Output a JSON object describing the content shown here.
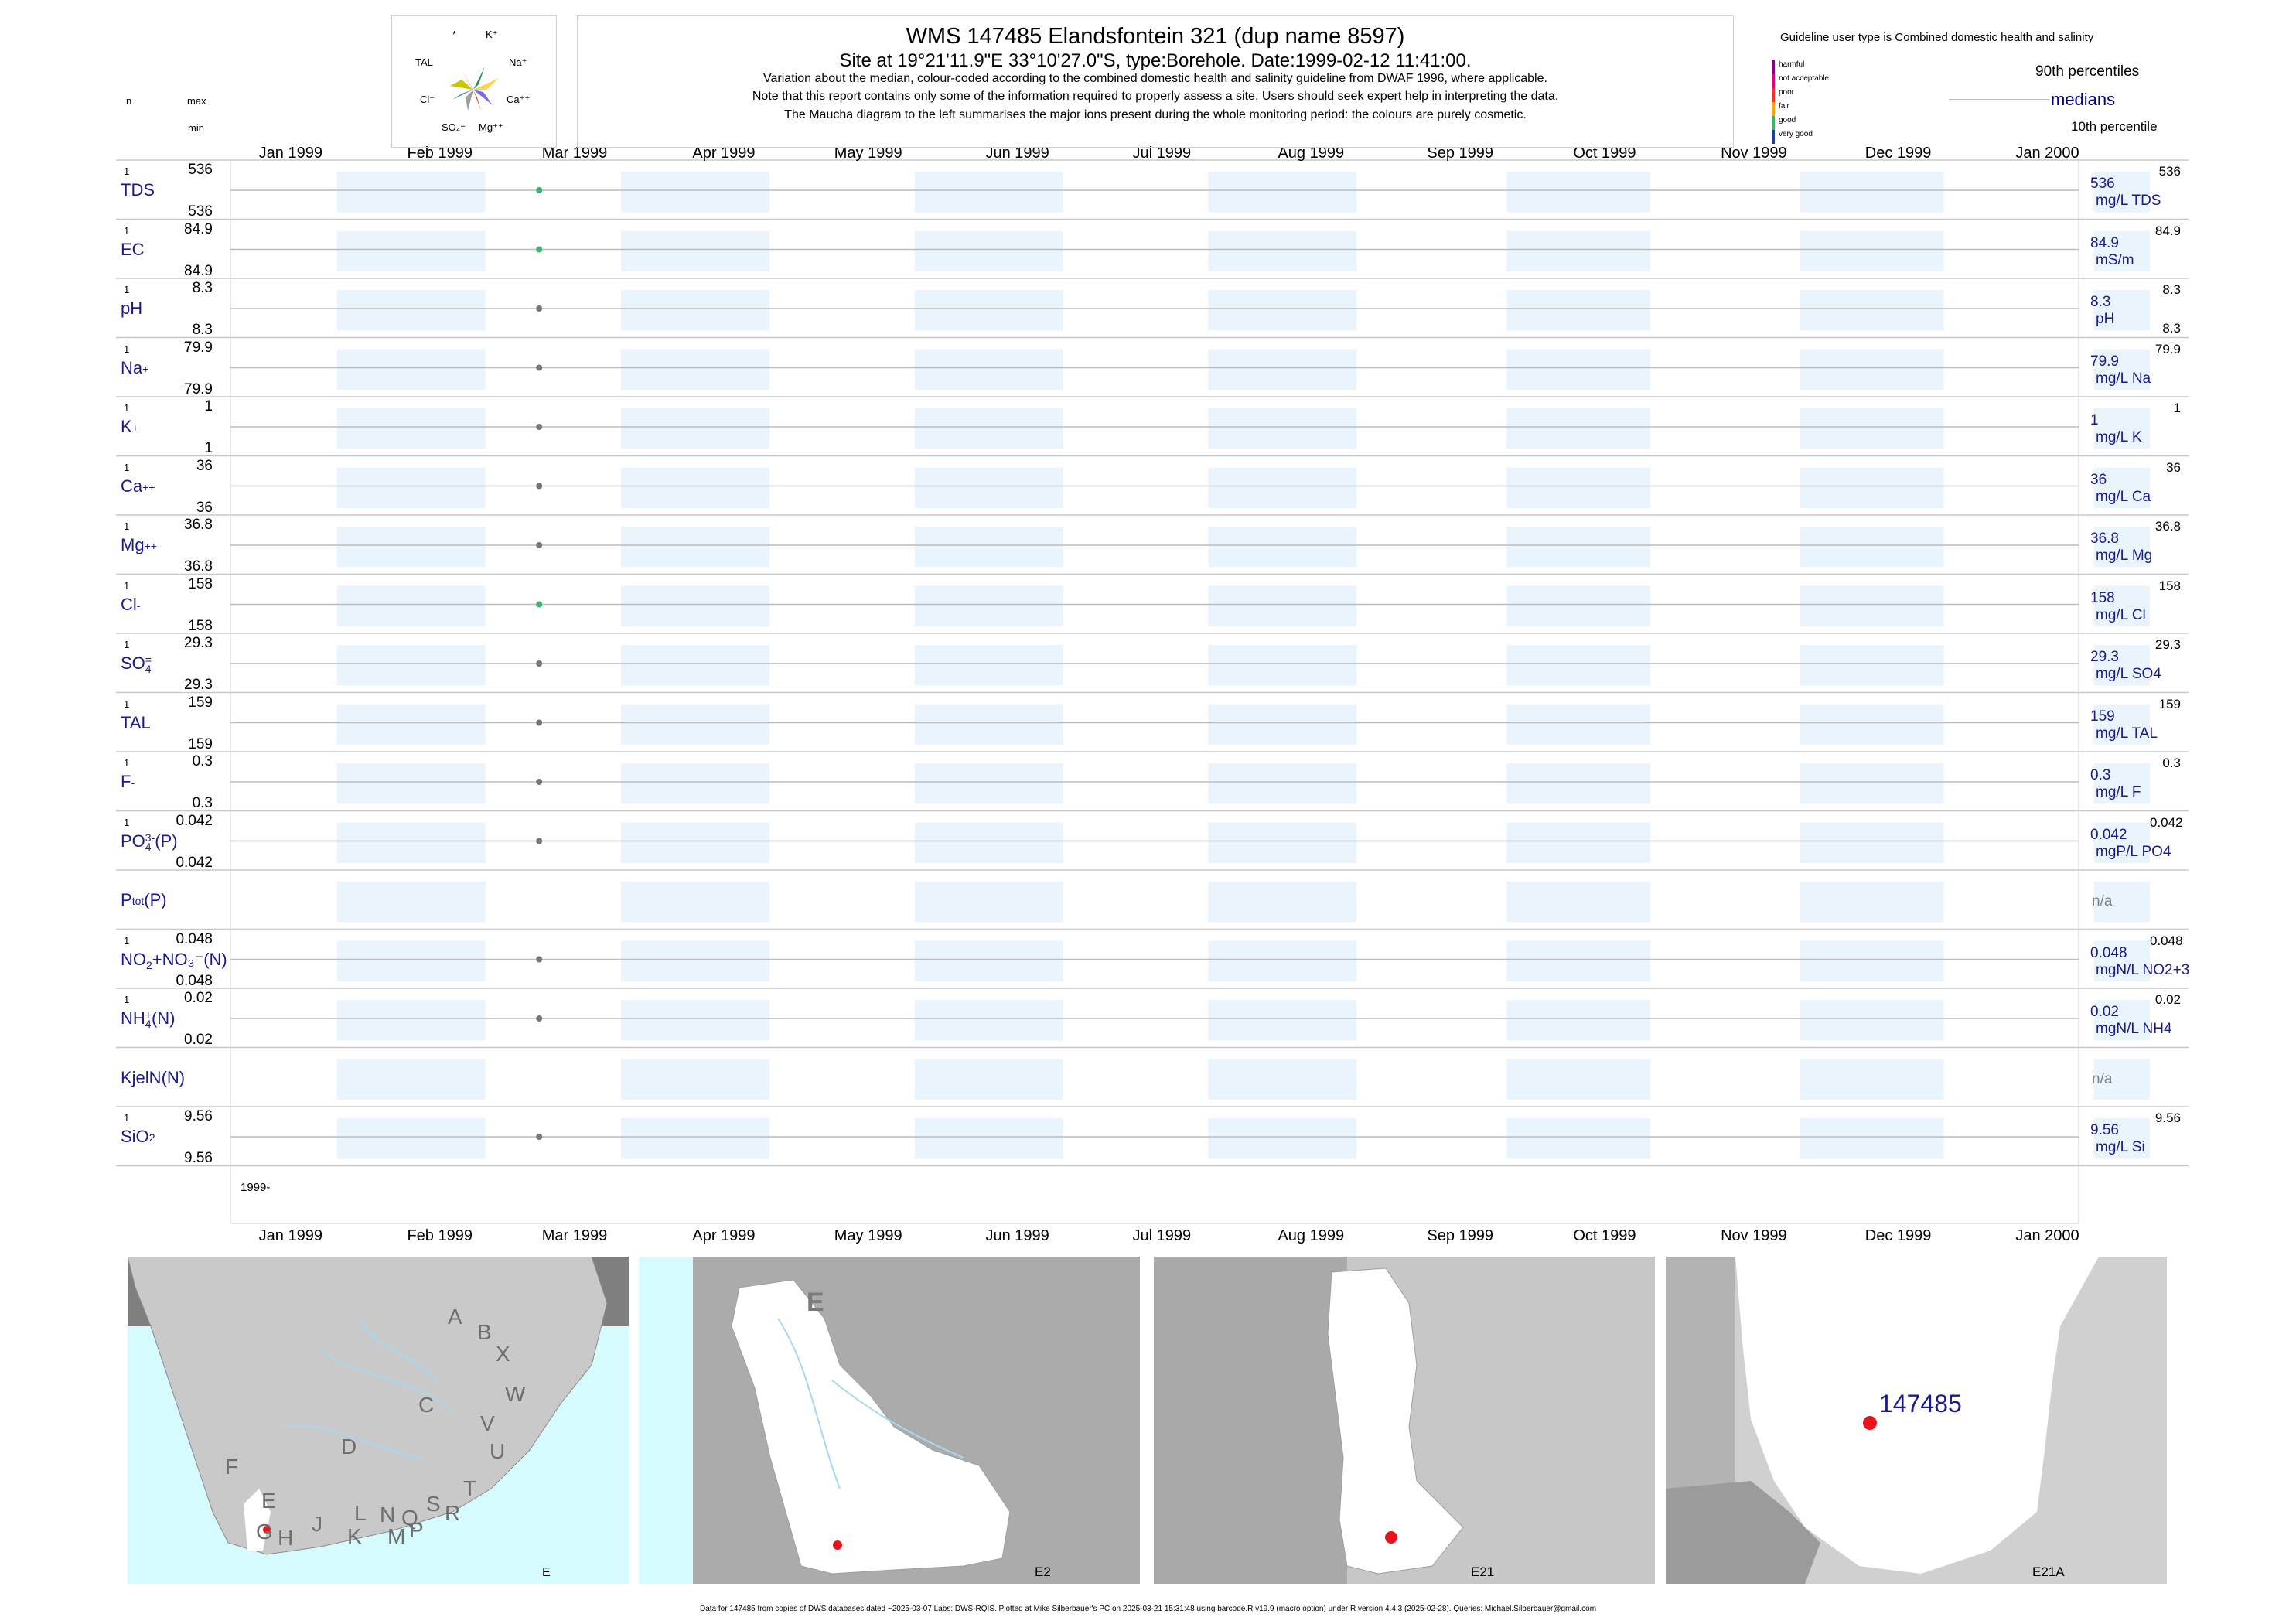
{
  "header": {
    "title": "WMS 147485  Elandsfontein 321 (dup name 8597)",
    "site": "Site at 19°21'11.9\"E 33°10'27.0\"S, type:Borehole. Date:1999-02-12 11:41:00.",
    "notes": [
      "Variation about the median,  colour-coded according to the combined domestic health and salinity guideline from DWAF 1996, where applicable.",
      "Note that this report contains only some of the information required to properly assess a site. Users should seek expert help in interpreting the data.",
      "The Maucha diagram to the left summarises the major ions present during the whole monitoring period: the colours are purely cosmetic."
    ]
  },
  "column_labels": {
    "n": "n",
    "max": "max",
    "min": "min"
  },
  "maucha": {
    "labels": [
      "*",
      "K⁺",
      "TAL",
      "Na⁺",
      "Cl⁻",
      "Ca⁺⁺",
      "SO₄⁼",
      "Mg⁺⁺"
    ],
    "colors": [
      "#f4a460",
      "#2e8b57",
      "#c8c800",
      "#ffd24d",
      "#4a90d9",
      "#7b68ee",
      "#9e9e9e",
      "#c0392b"
    ]
  },
  "legend": {
    "guideline": "Guideline user type is Combined domestic health and salinity",
    "classes": [
      {
        "label": "harmful",
        "color": "#8b008b"
      },
      {
        "label": "not acceptable",
        "color": "#e6007e"
      },
      {
        "label": "poor",
        "color": "#ff2a2a"
      },
      {
        "label": "fair",
        "color": "#ffa500"
      },
      {
        "label": "good",
        "color": "#3cb371"
      },
      {
        "label": "very good",
        "color": "#1f3f9a"
      }
    ],
    "p90": "90th percentiles",
    "medians": "medians",
    "p10": "10th percentile",
    "medians_color": "#00008b"
  },
  "chart_data": {
    "type": "scatter",
    "x_axis": {
      "ticks": [
        "Jan 1999",
        "Feb 1999",
        "Mar 1999",
        "Apr 1999",
        "May 1999",
        "Jun 1999",
        "Jul 1999",
        "Aug 1999",
        "Sep 1999",
        "Oct 1999",
        "Nov 1999",
        "Dec 1999",
        "Jan 2000"
      ],
      "range": [
        "1998-12-24",
        "2000-01-12"
      ],
      "year_label": "1999-"
    },
    "sample_date": "1999-02-12",
    "series": [
      {
        "name": "TDS",
        "sup": "",
        "sub": "",
        "n": "1",
        "max": "536",
        "min": "536",
        "median": "536",
        "unit": "mg/L TDS",
        "p90": "536",
        "p10": "",
        "value": 536,
        "color": "#3cb371"
      },
      {
        "name": "EC",
        "sup": "",
        "sub": "",
        "n": "1",
        "max": "84.9",
        "min": "84.9",
        "median": "84.9",
        "unit": "mS/m",
        "p90": "84.9",
        "p10": "",
        "value": 84.9,
        "color": "#3cb371"
      },
      {
        "name": "pH",
        "sup": "",
        "sub": "",
        "n": "1",
        "max": "8.3",
        "min": "8.3",
        "median": "8.3",
        "unit": "pH",
        "p90": "8.3",
        "p10": "8.3",
        "value": 8.3,
        "color": "#777777"
      },
      {
        "name": "Na",
        "sup": "+",
        "sub": "",
        "n": "1",
        "max": "79.9",
        "min": "79.9",
        "median": "79.9",
        "unit": "mg/L Na",
        "p90": "79.9",
        "p10": "",
        "value": 79.9,
        "color": "#777777"
      },
      {
        "name": "K",
        "sup": "+",
        "sub": "",
        "n": "1",
        "max": "1",
        "min": "1",
        "median": "1",
        "unit": "mg/L K",
        "p90": "1",
        "p10": "",
        "value": 1,
        "color": "#777777"
      },
      {
        "name": "Ca",
        "sup": "++",
        "sub": "",
        "n": "1",
        "max": "36",
        "min": "36",
        "median": "36",
        "unit": "mg/L Ca",
        "p90": "36",
        "p10": "",
        "value": 36,
        "color": "#777777"
      },
      {
        "name": "Mg",
        "sup": "++",
        "sub": "",
        "n": "1",
        "max": "36.8",
        "min": "36.8",
        "median": "36.8",
        "unit": "mg/L Mg",
        "p90": "36.8",
        "p10": "",
        "value": 36.8,
        "color": "#777777"
      },
      {
        "name": "Cl",
        "sup": "-",
        "sub": "",
        "n": "1",
        "max": "158",
        "min": "158",
        "median": "158",
        "unit": "mg/L Cl",
        "p90": "158",
        "p10": "",
        "value": 158,
        "color": "#3cb371"
      },
      {
        "name": "SO",
        "sup": "=",
        "sub": "4",
        "n": "1",
        "max": "29.3",
        "min": "29.3",
        "median": "29.3",
        "unit": "mg/L SO4",
        "p90": "29.3",
        "p10": "",
        "value": 29.3,
        "color": "#777777"
      },
      {
        "name": "TAL",
        "sup": "",
        "sub": "",
        "n": "1",
        "max": "159",
        "min": "159",
        "median": "159",
        "unit": "mg/L TAL",
        "p90": "159",
        "p10": "",
        "value": 159,
        "color": "#777777"
      },
      {
        "name": "F",
        "sup": "-",
        "sub": "",
        "n": "1",
        "max": "0.3",
        "min": "0.3",
        "median": "0.3",
        "unit": "mg/L F",
        "p90": "0.3",
        "p10": "",
        "value": 0.3,
        "color": "#777777"
      },
      {
        "name": "PO",
        "sup": "3-",
        "sub": "4",
        "suffix": "(P)",
        "n": "1",
        "max": "0.042",
        "min": "0.042",
        "median": "0.042",
        "unit": "mgP/L PO4",
        "p90": "0.042",
        "p10": "",
        "value": 0.042,
        "color": "#777777"
      },
      {
        "name": "P",
        "sup": "",
        "sub": "tot",
        "suffix": "(P)",
        "n": "",
        "max": "",
        "min": "",
        "median": "n/a",
        "unit": "",
        "p90": "",
        "p10": "",
        "value": null,
        "color": "#777777"
      },
      {
        "name": "NO",
        "sup": "-",
        "sub": "2",
        "suffix": "+NO₃⁻(N)",
        "n": "1",
        "max": "0.048",
        "min": "0.048",
        "median": "0.048",
        "unit": "mgN/L NO2+3",
        "p90": "0.048",
        "p10": "",
        "value": 0.048,
        "color": "#777777"
      },
      {
        "name": "NH",
        "sup": "+",
        "sub": "4",
        "suffix": "(N)",
        "n": "1",
        "max": "0.02",
        "min": "0.02",
        "median": "0.02",
        "unit": "mgN/L NH4",
        "p90": "0.02",
        "p10": "",
        "value": 0.02,
        "color": "#777777"
      },
      {
        "name": "KjelN(N)",
        "sup": "",
        "sub": "",
        "n": "",
        "max": "",
        "min": "",
        "median": "n/a",
        "unit": "",
        "p90": "",
        "p10": "",
        "value": null,
        "color": "#777777"
      },
      {
        "name": "SiO",
        "sup": "",
        "sub": "2",
        "n": "1",
        "max": "9.56",
        "min": "9.56",
        "median": "9.56",
        "unit": "mg/L Si",
        "p90": "9.56",
        "p10": "",
        "value": 9.56,
        "color": "#777777"
      }
    ]
  },
  "maps": [
    {
      "label": "E",
      "region_letters": [
        "A",
        "B",
        "X",
        "W",
        "C",
        "V",
        "D",
        "U",
        "F",
        "T",
        "E",
        "S",
        "R",
        "L",
        "N",
        "Q",
        "J",
        "K",
        "M",
        "P",
        "G",
        "H"
      ]
    },
    {
      "label": "E2",
      "big_letter": "E"
    },
    {
      "label": "E21"
    },
    {
      "label": "E21A",
      "site_label": "147485"
    }
  ],
  "footer": "Data for 147485 from copies of DWS databases dated ~2025-03-07 Labs: DWS-RQIS. Plotted at Mike Silberbauer's PC on 2025-03-21 15:31:48 using barcode.R v19.9 (macro option) under R version 4.4.3 (2025-02-28). Queries: Michael.Silberbauer@gmail.com"
}
